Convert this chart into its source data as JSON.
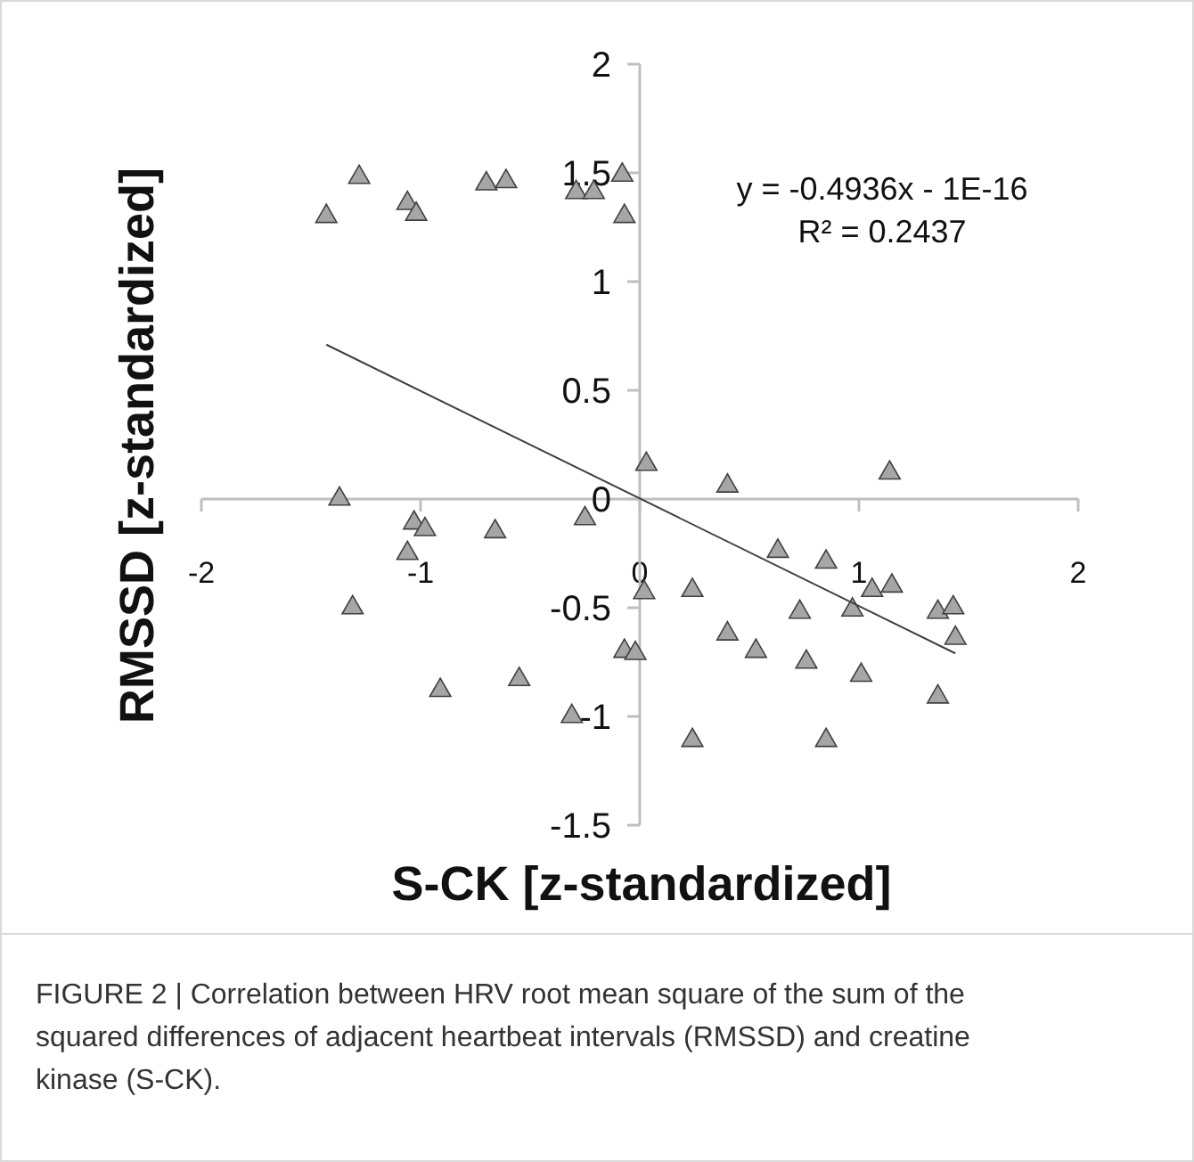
{
  "chart_data": {
    "type": "scatter",
    "xlabel": "S-CK [z-standardized]",
    "ylabel": "RMSSD [z-standardized]",
    "xlim": [
      -2,
      2
    ],
    "xticks": [
      -2,
      -1,
      0,
      1,
      2
    ],
    "ylim": [
      -1.5,
      2
    ],
    "yticks": [
      -1.5,
      -1,
      -0.5,
      0,
      0.5,
      1,
      1.5,
      2
    ],
    "grid": false,
    "marker": "triangle",
    "series": [
      {
        "type": "scatter",
        "color": "#a6a6a6",
        "x": [
          -1.43,
          -1.28,
          -1.06,
          -1.02,
          -0.7,
          -0.61,
          -0.29,
          -0.21,
          -0.08,
          -0.07,
          -1.37,
          0.03,
          -1.03,
          -0.98,
          -1.06,
          -0.66,
          -0.25,
          0.02,
          -1.31,
          -0.07,
          -0.02,
          -0.91,
          -0.55,
          -0.31,
          0.4,
          1.14,
          0.63,
          0.85,
          0.24,
          1.06,
          1.15,
          0.73,
          0.97,
          1.36,
          1.43,
          1.44,
          0.4,
          0.53,
          0.76,
          1.01,
          1.36,
          0.24,
          0.85
        ],
        "values": [
          1.3,
          1.48,
          1.36,
          1.31,
          1.45,
          1.46,
          1.41,
          1.41,
          1.49,
          1.3,
          0.0,
          0.16,
          -0.11,
          -0.14,
          -0.25,
          -0.15,
          -0.09,
          -0.43,
          -0.5,
          -0.7,
          -0.71,
          -0.88,
          -0.83,
          -1.0,
          0.06,
          0.12,
          -0.24,
          -0.29,
          -0.42,
          -0.42,
          -0.4,
          -0.52,
          -0.51,
          -0.52,
          -0.5,
          -0.64,
          -0.62,
          -0.7,
          -0.75,
          -0.81,
          -0.91,
          -1.11,
          -1.11
        ]
      },
      {
        "type": "line",
        "color": "#404040",
        "x": [
          -1.43,
          1.44
        ],
        "values": [
          0.71,
          -0.71
        ],
        "marker": "none"
      }
    ],
    "annotations": [
      "y = -0.4936x - 1E-16",
      "R² = 0.2437",
      "FIGURE 2 | Correlation between HRV root mean square of the sum of the squared differences of adjacent heartbeat intervals (RMSSD) and creatine kinase (S-CK)."
    ]
  }
}
